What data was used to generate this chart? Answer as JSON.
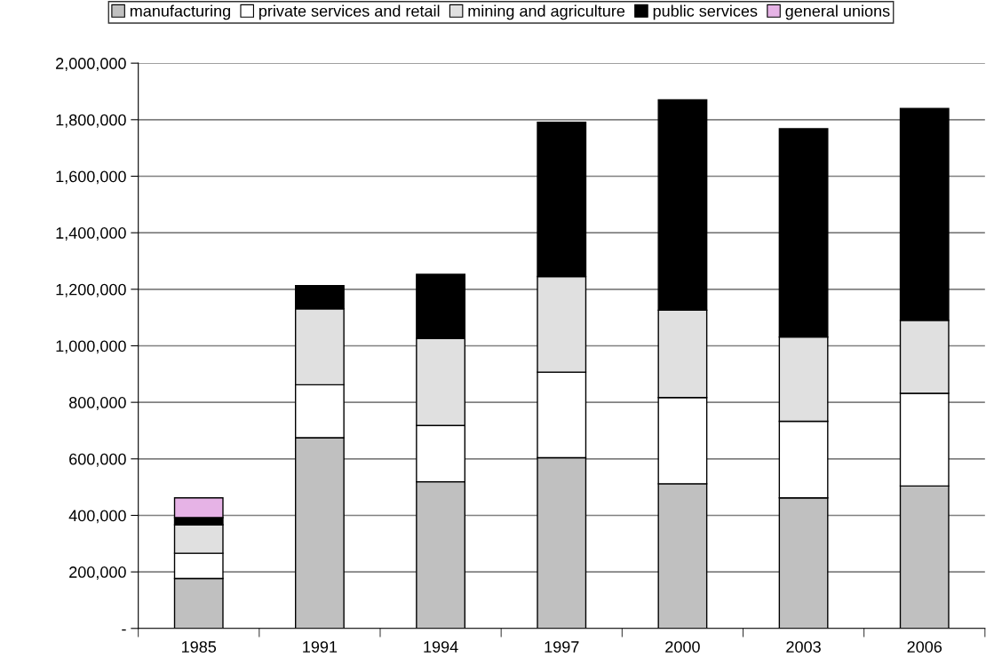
{
  "chart_data": {
    "type": "bar",
    "stacked": true,
    "categories": [
      "1985",
      "1991",
      "1994",
      "1997",
      "2000",
      "2003",
      "2006"
    ],
    "series": [
      {
        "name": "manufacturing",
        "color": "#c0c0c0",
        "values": [
          177000,
          675000,
          519000,
          604000,
          512000,
          462000,
          504000
        ]
      },
      {
        "name": "private services and retail",
        "color": "#ffffff",
        "values": [
          89000,
          187000,
          199000,
          303000,
          305000,
          271000,
          328000
        ]
      },
      {
        "name": "mining and agriculture",
        "color": "#e0e0e0",
        "values": [
          101000,
          269000,
          308000,
          338000,
          309000,
          298000,
          258000
        ]
      },
      {
        "name": "public services",
        "color": "#000000",
        "values": [
          25000,
          82000,
          227000,
          546000,
          744000,
          737000,
          750000
        ]
      },
      {
        "name": "general unions",
        "color": "#e6b3e6",
        "values": [
          70000,
          null,
          null,
          null,
          null,
          null,
          null
        ]
      }
    ],
    "ylim": [
      0,
      2000000
    ],
    "yticks": [
      {
        "value": 0,
        "label": "-"
      },
      {
        "value": 200000,
        "label": "200,000"
      },
      {
        "value": 400000,
        "label": "400,000"
      },
      {
        "value": 600000,
        "label": "600,000"
      },
      {
        "value": 800000,
        "label": "800,000"
      },
      {
        "value": 1000000,
        "label": "1,000,000"
      },
      {
        "value": 1200000,
        "label": "1,200,000"
      },
      {
        "value": 1400000,
        "label": "1,400,000"
      },
      {
        "value": 1600000,
        "label": "1,600,000"
      },
      {
        "value": 1800000,
        "label": "1,800,000"
      },
      {
        "value": 2000000,
        "label": "2,000,000"
      }
    ],
    "grid": "y",
    "legend": "top"
  }
}
